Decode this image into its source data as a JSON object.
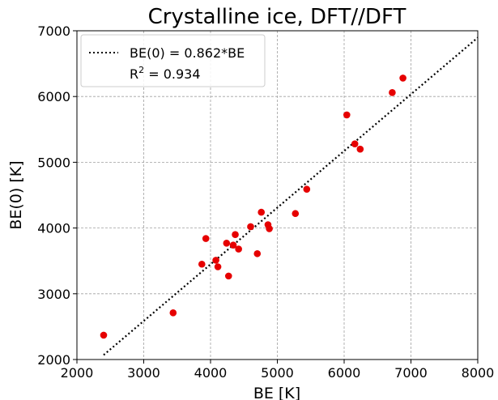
{
  "chart_data": {
    "type": "scatter",
    "title": "Crystalline ice, DFT//DFT",
    "xlabel": "BE [K]",
    "ylabel": "BE(0) [K]",
    "xlim": [
      2000,
      8000
    ],
    "ylim": [
      2000,
      7000
    ],
    "xticks": [
      "2000",
      "3000",
      "4000",
      "5000",
      "6000",
      "7000",
      "8000"
    ],
    "yticks": [
      "2000",
      "3000",
      "4000",
      "5000",
      "6000",
      "7000"
    ],
    "grid": true,
    "legend_position": "top-left",
    "points_color": "#e60000",
    "fit_color": "#000000",
    "points": [
      {
        "x": 2400,
        "y": 2370
      },
      {
        "x": 3440,
        "y": 2710
      },
      {
        "x": 3870,
        "y": 3450
      },
      {
        "x": 3930,
        "y": 3840
      },
      {
        "x": 4080,
        "y": 3510
      },
      {
        "x": 4110,
        "y": 3410
      },
      {
        "x": 4240,
        "y": 3770
      },
      {
        "x": 4270,
        "y": 3270
      },
      {
        "x": 4340,
        "y": 3740
      },
      {
        "x": 4370,
        "y": 3900
      },
      {
        "x": 4420,
        "y": 3680
      },
      {
        "x": 4600,
        "y": 4020
      },
      {
        "x": 4700,
        "y": 3610
      },
      {
        "x": 4760,
        "y": 4240
      },
      {
        "x": 4860,
        "y": 4050
      },
      {
        "x": 4880,
        "y": 3990
      },
      {
        "x": 5270,
        "y": 4220
      },
      {
        "x": 5440,
        "y": 4590
      },
      {
        "x": 6040,
        "y": 5720
      },
      {
        "x": 6160,
        "y": 5280
      },
      {
        "x": 6240,
        "y": 5200
      },
      {
        "x": 6720,
        "y": 6060
      },
      {
        "x": 6880,
        "y": 6280
      }
    ],
    "fit": {
      "slope": 0.862,
      "x_range": [
        2400,
        8000
      ],
      "legend_label": "BE(0) = 0.862*BE",
      "r2_prefix": "R",
      "r2_sup": "2",
      "r2_value": " = 0.934"
    }
  }
}
